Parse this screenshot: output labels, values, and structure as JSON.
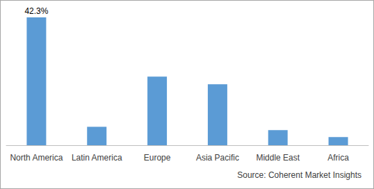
{
  "chart_data": {
    "type": "bar",
    "categories": [
      "North America",
      "Latin America",
      "Europe",
      "Asia Pacific",
      "Middle East",
      "Africa"
    ],
    "values": [
      42.3,
      6.1,
      22.7,
      20.2,
      5.0,
      2.7
    ],
    "value_labels": [
      "42.3%",
      null,
      null,
      null,
      null,
      null
    ],
    "color": "#5b9bd5",
    "ylim": [
      0,
      42.3
    ],
    "tick_labels": "x",
    "grid": false,
    "annotation": "Source: Coherent Market Insights"
  }
}
